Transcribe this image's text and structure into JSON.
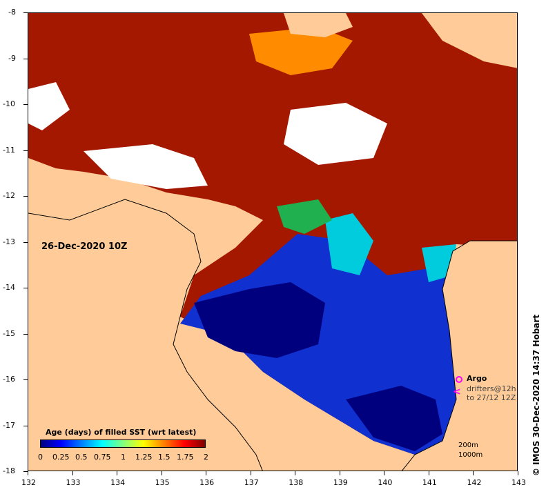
{
  "map": {
    "x_ticks": [
      "132",
      "133",
      "134",
      "135",
      "136",
      "137",
      "138",
      "139",
      "140",
      "141",
      "142",
      "143"
    ],
    "y_ticks": [
      "-8",
      "-9",
      "-10",
      "-11",
      "-12",
      "-13",
      "-14",
      "-15",
      "-16",
      "-17",
      "-18"
    ],
    "date": "26-Dec-2020 10Z"
  },
  "legend": {
    "title": "Age (days) of filled SST (wrt latest)",
    "labels": [
      "0",
      "0.25",
      "0.5",
      "0.75",
      "1",
      "1.25",
      "1.5",
      "1.75",
      "2"
    ]
  },
  "argo": {
    "label": "Argo",
    "drifters": "drifters@12h",
    "drifters_to": "to 27/12 12Z"
  },
  "depth": {
    "a": "200m",
    "b": "1000m"
  },
  "credit": "© IMOS 30-Dec-2020 14:37 Hobart",
  "colors": {
    "land": "#ffcc99",
    "age_0": "#00007f",
    "age_2": "#a51800",
    "nodata": "#ffffff"
  }
}
